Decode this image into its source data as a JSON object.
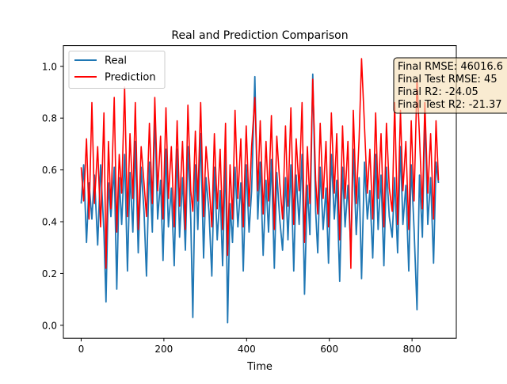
{
  "chart_data": {
    "type": "line",
    "title": "Real and Prediction Comparison",
    "xlabel": "Time",
    "ylabel": "",
    "xlim": [
      -43,
      907
    ],
    "ylim": [
      -0.05,
      1.08
    ],
    "x_ticks": [
      0,
      200,
      400,
      600,
      800
    ],
    "x_tick_labels": [
      "0",
      "200",
      "400",
      "600",
      "800"
    ],
    "y_ticks": [
      0.0,
      0.2,
      0.4,
      0.6,
      0.8,
      1.0
    ],
    "y_tick_labels": [
      "0.0",
      "0.2",
      "0.4",
      "0.6",
      "0.8",
      "1.0"
    ],
    "grid": false,
    "legend_position": "upper-left",
    "n_points": 865,
    "series": [
      {
        "name": "Real",
        "color": "#1f77b4",
        "x": [
          0,
          6,
          13,
          19,
          26,
          32,
          40,
          47,
          55,
          60,
          66,
          72,
          80,
          86,
          92,
          98,
          105,
          112,
          118,
          125,
          131,
          138,
          145,
          152,
          158,
          165,
          172,
          178,
          185,
          192,
          198,
          205,
          211,
          218,
          225,
          232,
          238,
          245,
          252,
          258,
          265,
          270,
          276,
          282,
          289,
          296,
          302,
          309,
          316,
          322,
          329,
          336,
          342,
          349,
          354,
          360,
          366,
          372,
          379,
          386,
          392,
          399,
          406,
          412,
          420,
          427,
          433,
          440,
          447,
          453,
          460,
          467,
          473,
          480,
          487,
          494,
          500,
          507,
          514,
          520,
          527,
          534,
          540,
          547,
          553,
          560,
          567,
          572,
          578,
          585,
          592,
          598,
          605,
          612,
          618,
          625,
          632,
          638,
          645,
          652,
          658,
          665,
          672,
          678,
          685,
          692,
          698,
          705,
          712,
          718,
          725,
          732,
          738,
          745,
          752,
          758,
          765,
          772,
          778,
          785,
          792,
          798,
          805,
          812,
          818,
          825,
          831,
          838,
          845,
          852,
          858,
          864
        ],
        "y": [
          0.47,
          0.62,
          0.32,
          0.55,
          0.41,
          0.58,
          0.31,
          0.62,
          0.36,
          0.09,
          0.55,
          0.42,
          0.61,
          0.14,
          0.57,
          0.39,
          0.66,
          0.21,
          0.59,
          0.36,
          0.71,
          0.28,
          0.61,
          0.44,
          0.19,
          0.63,
          0.36,
          0.82,
          0.41,
          0.56,
          0.25,
          0.68,
          0.38,
          0.53,
          0.23,
          0.68,
          0.34,
          0.57,
          0.29,
          0.69,
          0.41,
          0.03,
          0.62,
          0.37,
          0.74,
          0.26,
          0.57,
          0.44,
          0.19,
          0.61,
          0.33,
          0.52,
          0.23,
          0.66,
          0.01,
          0.47,
          0.32,
          0.61,
          0.38,
          0.55,
          0.21,
          0.62,
          0.36,
          0.52,
          0.96,
          0.41,
          0.63,
          0.27,
          0.56,
          0.36,
          0.64,
          0.22,
          0.59,
          0.41,
          0.29,
          0.57,
          0.33,
          0.62,
          0.21,
          0.58,
          0.39,
          0.66,
          0.12,
          0.54,
          0.35,
          0.97,
          0.44,
          0.28,
          0.61,
          0.37,
          0.53,
          0.24,
          0.66,
          0.41,
          0.56,
          0.17,
          0.61,
          0.38,
          0.54,
          0.29,
          0.68,
          0.35,
          0.57,
          0.18,
          0.63,
          0.41,
          0.52,
          0.26,
          0.66,
          0.37,
          0.58,
          0.23,
          0.61,
          0.42,
          0.34,
          0.57,
          0.28,
          0.69,
          0.39,
          0.54,
          0.21,
          0.62,
          0.37,
          0.06,
          0.58,
          0.34,
          0.82,
          0.39,
          0.57,
          0.24,
          0.63,
          0.55
        ]
      },
      {
        "name": "Prediction",
        "color": "#ff0000",
        "x": [
          0,
          6,
          13,
          19,
          26,
          32,
          40,
          47,
          55,
          60,
          66,
          72,
          80,
          86,
          92,
          98,
          105,
          112,
          118,
          125,
          131,
          138,
          145,
          152,
          158,
          165,
          172,
          178,
          185,
          192,
          198,
          205,
          211,
          218,
          225,
          232,
          238,
          245,
          252,
          258,
          265,
          270,
          276,
          282,
          289,
          296,
          302,
          309,
          316,
          322,
          329,
          336,
          342,
          349,
          354,
          360,
          366,
          372,
          379,
          386,
          392,
          399,
          406,
          412,
          420,
          427,
          433,
          440,
          447,
          453,
          460,
          467,
          473,
          480,
          487,
          494,
          500,
          507,
          514,
          520,
          527,
          534,
          540,
          547,
          553,
          560,
          567,
          572,
          578,
          585,
          592,
          598,
          605,
          612,
          618,
          625,
          632,
          638,
          645,
          652,
          658,
          665,
          672,
          678,
          685,
          692,
          698,
          705,
          712,
          718,
          725,
          732,
          738,
          745,
          752,
          758,
          765,
          772,
          778,
          785,
          792,
          798,
          805,
          812,
          818,
          825,
          831,
          838,
          845,
          852,
          858,
          864
        ],
        "y": [
          0.61,
          0.48,
          0.72,
          0.41,
          0.86,
          0.47,
          0.69,
          0.38,
          0.82,
          0.22,
          0.71,
          0.45,
          0.88,
          0.36,
          0.66,
          0.51,
          0.92,
          0.42,
          0.74,
          0.49,
          0.86,
          0.37,
          0.69,
          0.55,
          0.42,
          0.78,
          0.47,
          0.88,
          0.52,
          0.73,
          0.41,
          0.84,
          0.49,
          0.69,
          0.38,
          0.79,
          0.46,
          0.71,
          0.37,
          0.85,
          0.52,
          0.44,
          0.75,
          0.48,
          0.86,
          0.42,
          0.69,
          0.55,
          0.38,
          0.74,
          0.45,
          0.68,
          0.37,
          0.78,
          0.27,
          0.62,
          0.41,
          0.83,
          0.49,
          0.72,
          0.38,
          0.77,
          0.46,
          0.69,
          0.88,
          0.52,
          0.79,
          0.43,
          0.71,
          0.48,
          0.81,
          0.37,
          0.73,
          0.55,
          0.41,
          0.77,
          0.46,
          0.84,
          0.39,
          0.72,
          0.52,
          0.86,
          0.32,
          0.69,
          0.47,
          0.95,
          0.56,
          0.43,
          0.78,
          0.49,
          0.71,
          0.38,
          0.82,
          0.51,
          0.74,
          0.33,
          0.77,
          0.49,
          0.71,
          0.22,
          0.83,
          0.47,
          0.72,
          1.03,
          0.77,
          0.51,
          0.68,
          0.41,
          0.82,
          0.49,
          0.74,
          0.38,
          0.78,
          0.53,
          0.44,
          0.86,
          0.39,
          0.83,
          0.52,
          0.71,
          0.37,
          0.79,
          0.48,
          0.95,
          0.73,
          0.45,
          0.86,
          0.51,
          0.74,
          0.41,
          0.79,
          0.56
        ]
      }
    ],
    "annotation": {
      "lines": [
        "Final RMSE: 46016.6",
        "Final Test RMSE: 45",
        "Final R2: -24.05",
        "Final Test R2: -21.37"
      ],
      "box_facecolor": "#f5deb3",
      "box_edgecolor": "#000000"
    }
  }
}
